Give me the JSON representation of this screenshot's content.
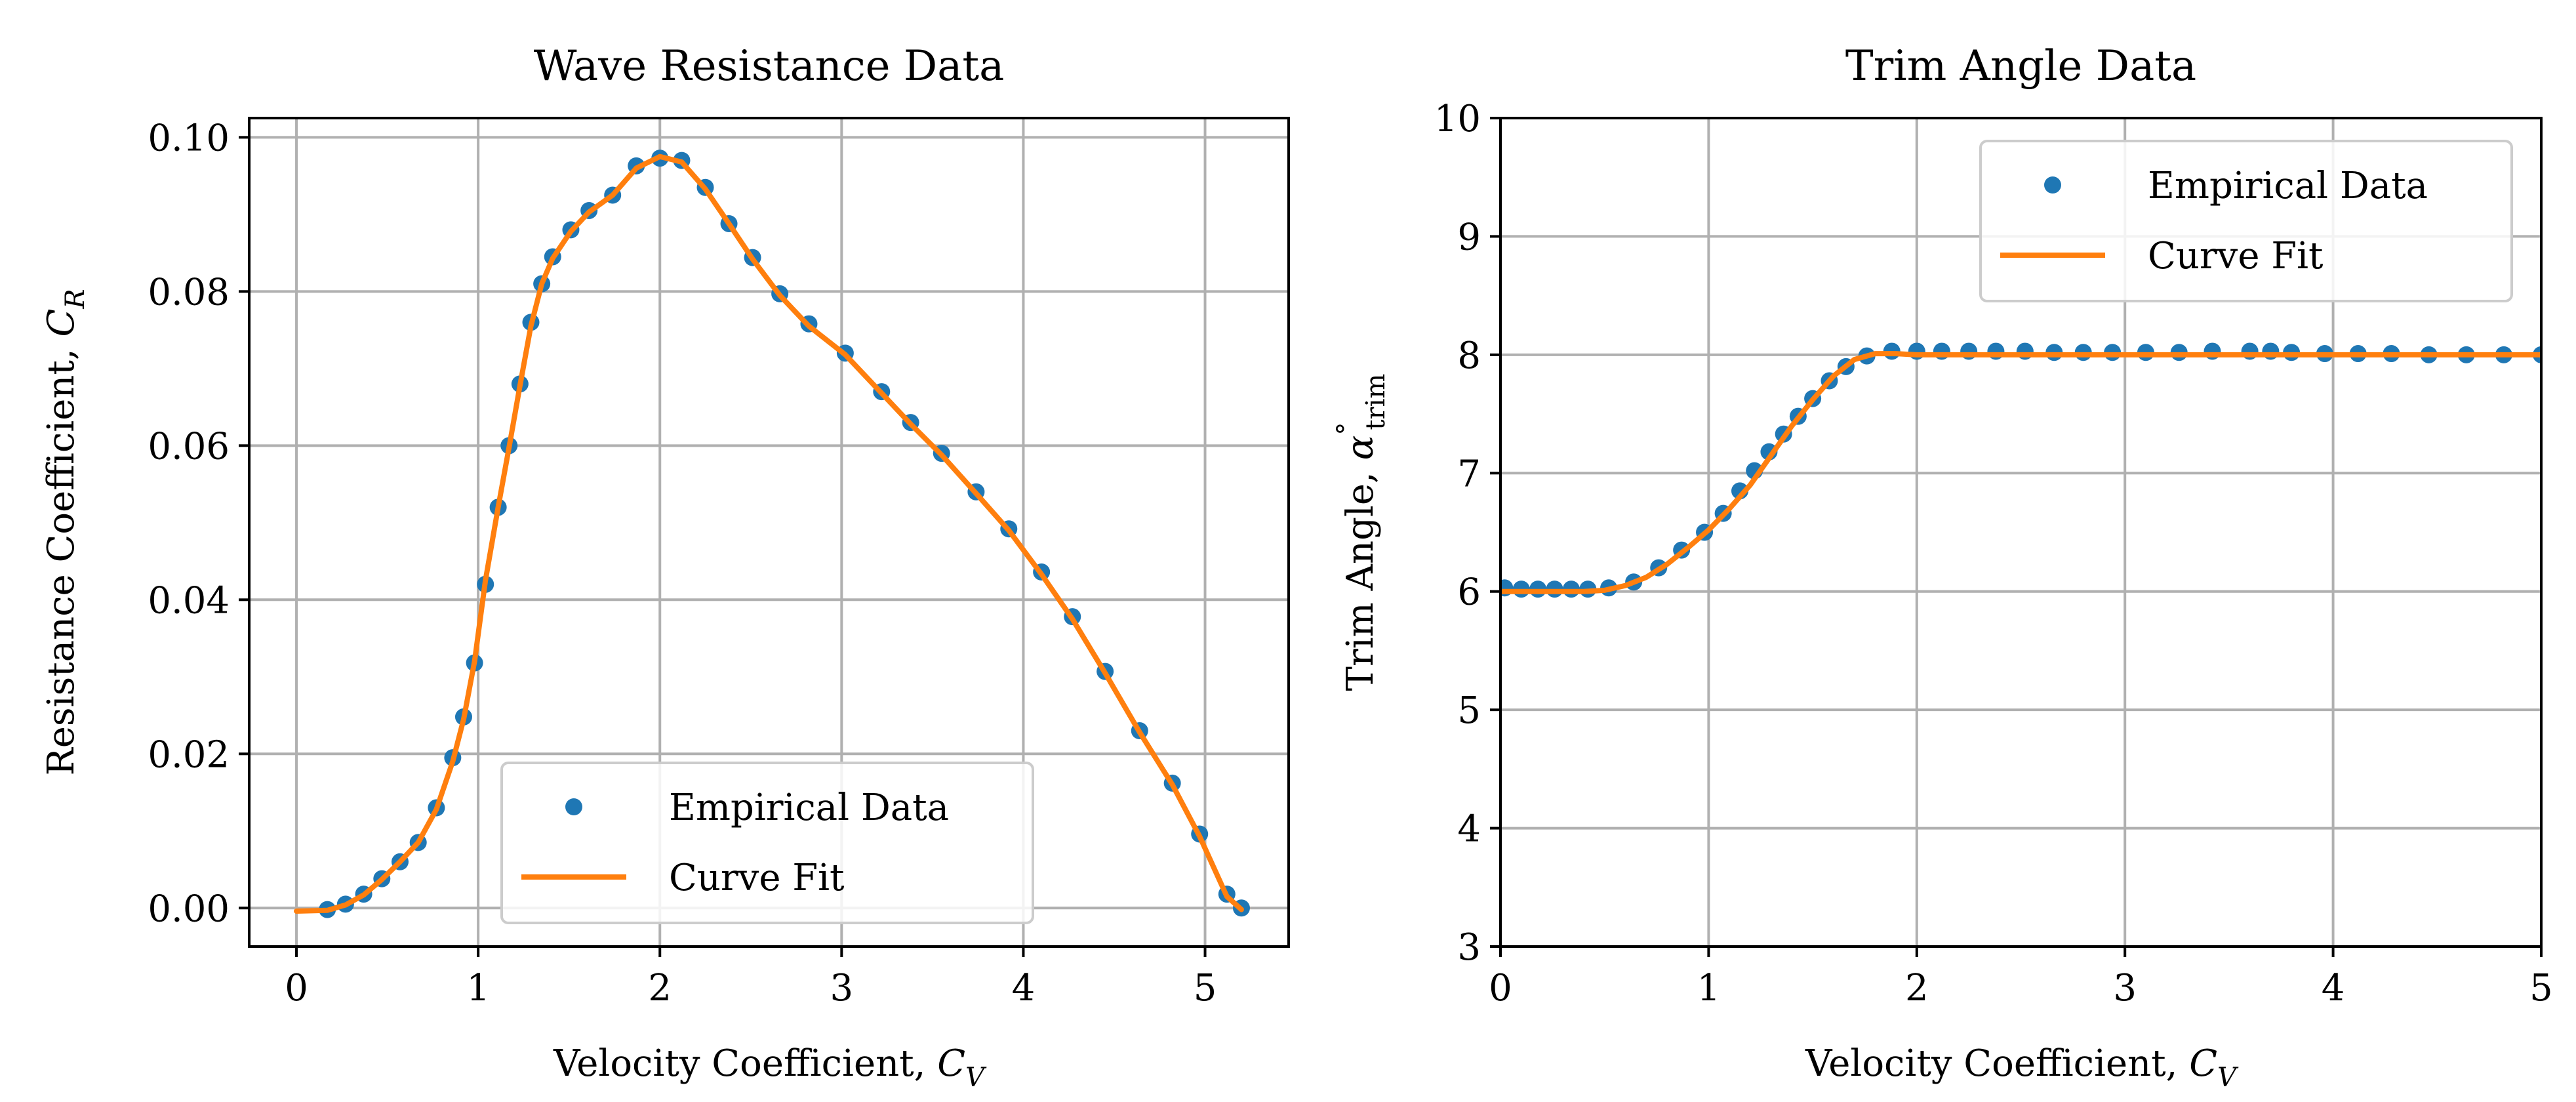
{
  "chart_data": [
    {
      "type": "line",
      "title": "Wave Resistance Data",
      "xlabel": "Velocity Coefficient, ",
      "xlabel_sym": "C",
      "xlabel_sub": "V",
      "ylabel": "Resistance Coefficient, ",
      "ylabel_sym": "C",
      "ylabel_sub": "R",
      "xlim": [
        -0.26,
        5.46
      ],
      "ylim": [
        -0.005,
        0.1025
      ],
      "xticks": [
        0,
        1,
        2,
        3,
        4,
        5
      ],
      "xtick_labels": [
        "0",
        "1",
        "2",
        "3",
        "4",
        "5"
      ],
      "yticks": [
        0.0,
        0.02,
        0.04,
        0.06,
        0.08,
        0.1
      ],
      "ytick_labels": [
        "0.00",
        "0.02",
        "0.04",
        "0.06",
        "0.08",
        "0.10"
      ],
      "grid": true,
      "legend_position": "lower center",
      "series": [
        {
          "name": "Empirical Data",
          "kind": "markers",
          "color": "#1f77b4",
          "x": [
            0.17,
            0.27,
            0.37,
            0.47,
            0.57,
            0.67,
            0.77,
            0.86,
            0.92,
            0.98,
            1.04,
            1.11,
            1.17,
            1.23,
            1.29,
            1.35,
            1.41,
            1.51,
            1.61,
            1.74,
            1.87,
            2.0,
            2.12,
            2.25,
            2.38,
            2.51,
            2.66,
            2.82,
            3.02,
            3.22,
            3.38,
            3.55,
            3.74,
            3.92,
            4.1,
            4.27,
            4.45,
            4.64,
            4.82,
            4.97,
            5.12,
            5.2
          ],
          "y": [
            -0.0002,
            0.0005,
            0.0018,
            0.0038,
            0.006,
            0.0085,
            0.013,
            0.0195,
            0.0248,
            0.0318,
            0.042,
            0.052,
            0.06,
            0.068,
            0.076,
            0.081,
            0.0845,
            0.088,
            0.0905,
            0.0925,
            0.0963,
            0.0973,
            0.097,
            0.0935,
            0.0888,
            0.0844,
            0.0797,
            0.0758,
            0.072,
            0.067,
            0.063,
            0.059,
            0.054,
            0.0492,
            0.0436,
            0.0378,
            0.0307,
            0.023,
            0.0162,
            0.0096,
            0.0018,
            0.0
          ]
        },
        {
          "name": "Curve Fit",
          "kind": "line",
          "color": "#ff7f0e",
          "x": [
            0.0,
            0.17,
            0.27,
            0.37,
            0.47,
            0.57,
            0.67,
            0.77,
            0.86,
            0.92,
            0.98,
            1.04,
            1.11,
            1.17,
            1.23,
            1.29,
            1.35,
            1.41,
            1.51,
            1.61,
            1.74,
            1.87,
            2.0,
            2.12,
            2.25,
            2.38,
            2.51,
            2.66,
            2.82,
            3.02,
            3.22,
            3.38,
            3.55,
            3.74,
            3.92,
            4.1,
            4.27,
            4.45,
            4.64,
            4.82,
            4.97,
            5.12,
            5.2
          ],
          "y": [
            -0.0004,
            -0.0003,
            0.0004,
            0.0017,
            0.0037,
            0.006,
            0.0085,
            0.0128,
            0.019,
            0.0245,
            0.032,
            0.0425,
            0.052,
            0.0598,
            0.0678,
            0.0755,
            0.081,
            0.0843,
            0.0878,
            0.0903,
            0.0925,
            0.096,
            0.0975,
            0.0968,
            0.0933,
            0.0888,
            0.0842,
            0.0795,
            0.0755,
            0.0718,
            0.0668,
            0.0628,
            0.0588,
            0.0538,
            0.049,
            0.0433,
            0.0375,
            0.0305,
            0.0228,
            0.016,
            0.0093,
            0.0015,
            -0.0002
          ]
        }
      ]
    },
    {
      "type": "line",
      "title": "Trim Angle Data",
      "xlabel": "Velocity Coefficient, ",
      "xlabel_sym": "C",
      "xlabel_sub": "V",
      "ylabel": "Trim Angle, ",
      "ylabel_sym": "α",
      "ylabel_sup": "°",
      "ylabel_sub": "trim",
      "xlim": [
        0,
        5
      ],
      "ylim": [
        3,
        10
      ],
      "xticks": [
        0,
        1,
        2,
        3,
        4,
        5
      ],
      "xtick_labels": [
        "0",
        "1",
        "2",
        "3",
        "4",
        "5"
      ],
      "yticks": [
        3,
        4,
        5,
        6,
        7,
        8,
        9,
        10
      ],
      "ytick_labels": [
        "3",
        "4",
        "5",
        "6",
        "7",
        "8",
        "9",
        "10"
      ],
      "grid": true,
      "legend_position": "upper right",
      "series": [
        {
          "name": "Empirical Data",
          "kind": "markers",
          "color": "#1f77b4",
          "x": [
            0.02,
            0.1,
            0.18,
            0.26,
            0.34,
            0.42,
            0.52,
            0.64,
            0.76,
            0.87,
            0.98,
            1.07,
            1.15,
            1.22,
            1.29,
            1.36,
            1.43,
            1.5,
            1.58,
            1.66,
            1.76,
            1.88,
            2.0,
            2.12,
            2.25,
            2.38,
            2.52,
            2.66,
            2.8,
            2.94,
            3.1,
            3.26,
            3.42,
            3.6,
            3.7,
            3.8,
            3.96,
            4.12,
            4.28,
            4.46,
            4.64,
            4.82,
            5.0
          ],
          "y": [
            6.03,
            6.02,
            6.02,
            6.02,
            6.02,
            6.02,
            6.03,
            6.08,
            6.2,
            6.35,
            6.5,
            6.66,
            6.85,
            7.02,
            7.18,
            7.33,
            7.48,
            7.63,
            7.78,
            7.9,
            7.99,
            8.03,
            8.03,
            8.03,
            8.03,
            8.03,
            8.03,
            8.02,
            8.02,
            8.02,
            8.02,
            8.02,
            8.03,
            8.03,
            8.03,
            8.02,
            8.01,
            8.01,
            8.01,
            8.0,
            8.0,
            8.0,
            8.0
          ]
        },
        {
          "name": "Curve Fit",
          "kind": "line",
          "color": "#ff7f0e",
          "x": [
            0.0,
            0.1,
            0.2,
            0.3,
            0.4,
            0.5,
            0.6,
            0.7,
            0.8,
            0.9,
            1.0,
            1.1,
            1.2,
            1.3,
            1.4,
            1.5,
            1.6,
            1.7,
            1.8,
            1.9,
            2.0,
            2.5,
            3.0,
            3.5,
            4.0,
            4.5,
            5.0
          ],
          "y": [
            6.0,
            6.0,
            6.0,
            6.0,
            6.0,
            6.01,
            6.05,
            6.12,
            6.23,
            6.37,
            6.52,
            6.7,
            6.9,
            7.15,
            7.4,
            7.62,
            7.82,
            7.96,
            8.01,
            8.01,
            8.0,
            8.0,
            8.0,
            8.0,
            8.0,
            8.0,
            8.0
          ]
        }
      ]
    }
  ]
}
